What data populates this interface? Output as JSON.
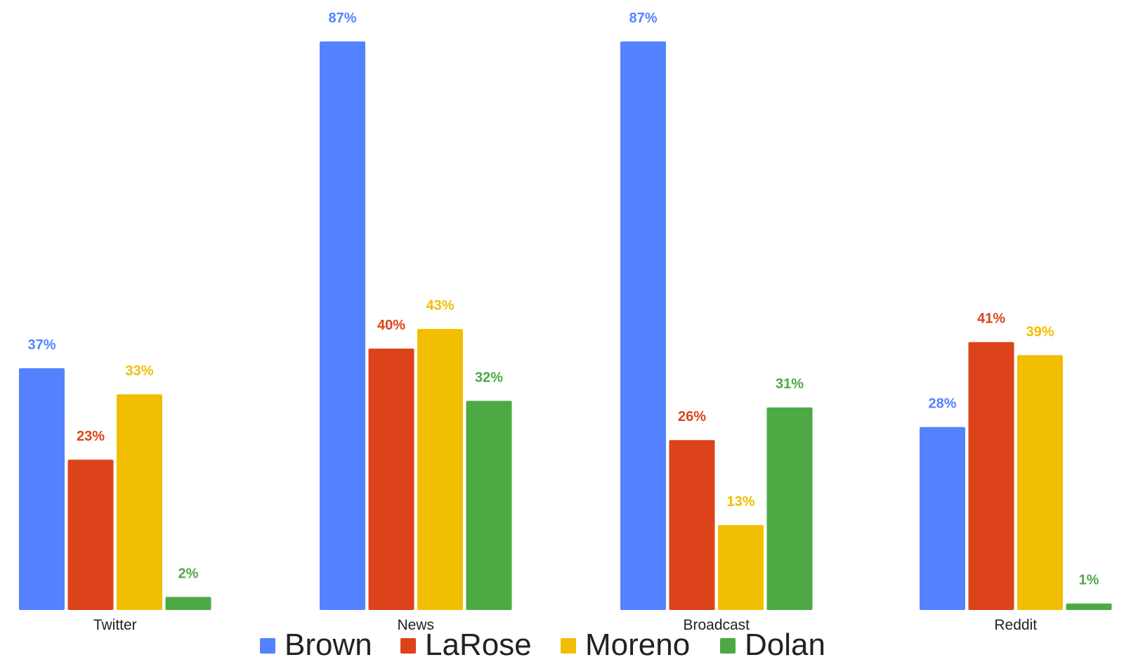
{
  "chart_data": {
    "type": "bar",
    "title": "",
    "xlabel": "",
    "ylabel": "",
    "ylim": [
      0,
      87
    ],
    "grid": false,
    "legend_position": "bottom",
    "categories": [
      "Twitter",
      "News",
      "Broadcast",
      "Reddit"
    ],
    "series": [
      {
        "name": "Brown",
        "color": "#5482FE",
        "values": [
          37,
          87,
          87,
          28
        ],
        "labels": [
          "37%",
          "87%",
          "87%",
          "28%"
        ]
      },
      {
        "name": "LaRose",
        "color": "#DD431B",
        "values": [
          23,
          40,
          26,
          41
        ],
        "labels": [
          "23%",
          "40%",
          "26%",
          "41%"
        ]
      },
      {
        "name": "Moreno",
        "color": "#F1BE02",
        "values": [
          33,
          43,
          13,
          39
        ],
        "labels": [
          "33%",
          "43%",
          "13%",
          "39%"
        ]
      },
      {
        "name": "Dolan",
        "color": "#4DA944",
        "values": [
          2,
          32,
          31,
          1
        ],
        "labels": [
          "2%",
          "32%",
          "31%",
          "1%"
        ]
      }
    ]
  }
}
